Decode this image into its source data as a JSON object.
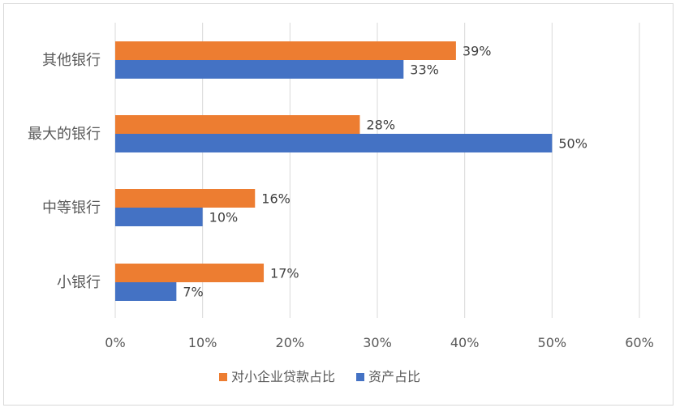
{
  "chart_data": {
    "type": "bar",
    "orientation": "horizontal",
    "categories": [
      "其他银行",
      "最大的银行",
      "中等银行",
      "小银行"
    ],
    "series": [
      {
        "name": "对小企业贷款占比",
        "color": "#ED7D31",
        "values": [
          39,
          28,
          16,
          17
        ],
        "labels": [
          "39%",
          "28%",
          "16%",
          "17%"
        ]
      },
      {
        "name": "资产占比",
        "color": "#4472C4",
        "values": [
          33,
          50,
          10,
          7
        ],
        "labels": [
          "33%",
          "50%",
          "10%",
          "7%"
        ]
      }
    ],
    "xlim": [
      0,
      60
    ],
    "xticks": [
      0,
      10,
      20,
      30,
      40,
      50,
      60
    ],
    "xtick_labels": [
      "0%",
      "10%",
      "20%",
      "30%",
      "40%",
      "50%",
      "60%"
    ],
    "grid": true,
    "legend": "bottom"
  }
}
